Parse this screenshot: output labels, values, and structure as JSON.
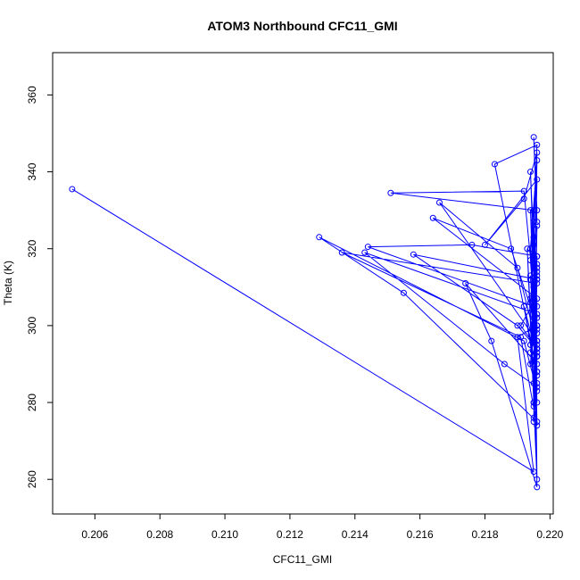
{
  "chart_data": {
    "type": "line",
    "title": "ATOM3 Northbound CFC11_GMI",
    "xlabel": "CFC11_GMI",
    "ylabel": "Theta (K)",
    "xlim": [
      0.2047,
      0.2201
    ],
    "ylim": [
      251,
      371
    ],
    "x_ticks": [
      0.206,
      0.208,
      0.21,
      0.212,
      0.214,
      0.216,
      0.218,
      0.22
    ],
    "x_tick_labels": [
      "0.206",
      "0.208",
      "0.210",
      "0.212",
      "0.214",
      "0.216",
      "0.218",
      "0.220"
    ],
    "y_ticks": [
      260,
      280,
      300,
      320,
      340,
      360
    ],
    "y_tick_labels": [
      "260",
      "280",
      "300",
      "320",
      "340",
      "360"
    ],
    "grid": false,
    "legend": "none",
    "line_color": "#0000ff",
    "marker": "open-circle",
    "series": [
      {
        "x": [
          0.2053,
          0.2195,
          0.219,
          0.2196,
          0.2194,
          0.2196,
          0.2195,
          0.2196,
          0.2155,
          0.2129,
          0.2192,
          0.2196,
          0.2195,
          0.2196,
          0.2194,
          0.2196,
          0.2195,
          0.2193,
          0.2196,
          0.2195,
          0.2151,
          0.2192,
          0.2196,
          0.2194,
          0.2196,
          0.2195,
          0.2191,
          0.2196,
          0.2195,
          0.2196,
          0.2166,
          0.219,
          0.2196,
          0.2195,
          0.2196,
          0.2194,
          0.2196,
          0.2195,
          0.2144,
          0.2176,
          0.2196,
          0.2195,
          0.2192,
          0.2196,
          0.2194,
          0.2196,
          0.2195,
          0.2196,
          0.2164,
          0.2188,
          0.2196,
          0.2195,
          0.2196,
          0.2195,
          0.2196,
          0.2194,
          0.2196,
          0.2136,
          0.2191,
          0.2196,
          0.2195,
          0.2196,
          0.2194,
          0.2196,
          0.2195,
          0.2196,
          0.2195,
          0.2174,
          0.2182,
          0.2196,
          0.2195,
          0.2196,
          0.2194,
          0.2196,
          0.2195,
          0.2196,
          0.2158,
          0.219,
          0.2196,
          0.2195,
          0.2196,
          0.2194,
          0.2196,
          0.2195,
          0.2196,
          0.2143,
          0.2186,
          0.2196,
          0.2195,
          0.2196,
          0.2194,
          0.2196,
          0.2195,
          0.2196,
          0.2183,
          0.2196,
          0.2195,
          0.2196,
          0.2194,
          0.2196,
          0.2195,
          0.2196,
          0.2195,
          0.2196,
          0.218,
          0.2192,
          0.2196,
          0.2195,
          0.2196,
          0.2194,
          0.2196,
          0.2195,
          0.2196
        ],
        "y": [
          335.5,
          262,
          297,
          300,
          295,
          290,
          310,
          275,
          308.5,
          323,
          296,
          283,
          300,
          318,
          295,
          312,
          285,
          320,
          260,
          330,
          334.5,
          335,
          300,
          320,
          343,
          306,
          300,
          294,
          280,
          296,
          332,
          315,
          295,
          300,
          285,
          313,
          288,
          305,
          320.5,
          321,
          318,
          290,
          305,
          292,
          317,
          326,
          280,
          307,
          328,
          320,
          300,
          310,
          292,
          276,
          315,
          293,
          311,
          319,
          297,
          274,
          310,
          298,
          330,
          280,
          304,
          314,
          291,
          311,
          296,
          258,
          300,
          292,
          340,
          302,
          279,
          312,
          318.5,
          300,
          294,
          323,
          287,
          307,
          293,
          275,
          303,
          319,
          290,
          284,
          308,
          296,
          312,
          299,
          302,
          288,
          342,
          347,
          327,
          305,
          290,
          313,
          321,
          294,
          300,
          338,
          321,
          333,
          345,
          323,
          316,
          306,
          330,
          349,
          327
        ]
      }
    ]
  }
}
